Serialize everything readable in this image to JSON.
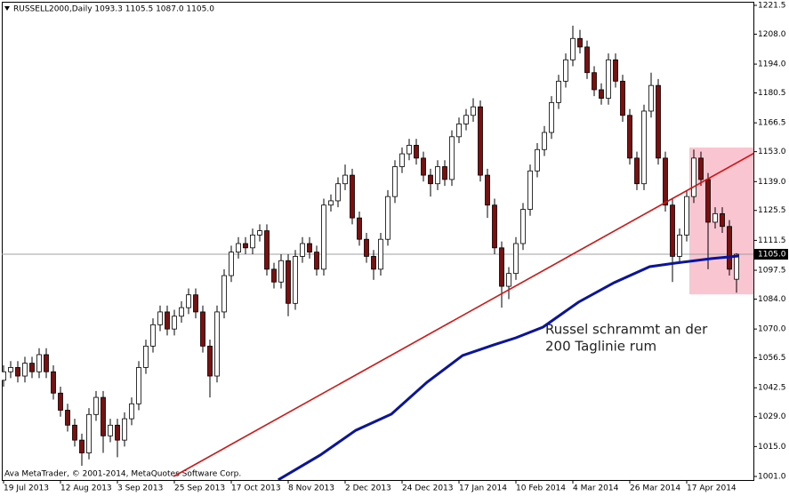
{
  "chart_data": {
    "type": "candlestick",
    "title": "RUSSELL2000,Daily  1093.3 1105.5 1087.0 1105.0",
    "copyright": "Ava MetaTrader, © 2001-2014, MetaQuotes Software Corp.",
    "annotation": [
      "Russel schrammt an der",
      "200 Taglinie rum"
    ],
    "categories": [
      "19 Jul 2013",
      null,
      null,
      null,
      null,
      null,
      null,
      null,
      "12 Aug 2013",
      null,
      null,
      null,
      null,
      null,
      null,
      null,
      "3 Sep 2013",
      null,
      null,
      null,
      null,
      null,
      null,
      null,
      "25 Sep 2013",
      null,
      null,
      null,
      null,
      null,
      null,
      null,
      "17 Oct 2013",
      null,
      null,
      null,
      null,
      null,
      null,
      null,
      "8 Nov 2013",
      null,
      null,
      null,
      null,
      null,
      null,
      null,
      "2 Dec 2013",
      null,
      null,
      null,
      null,
      null,
      null,
      null,
      "24 Dec 2013",
      null,
      null,
      null,
      null,
      null,
      null,
      null,
      "17 Jan 2014",
      null,
      null,
      null,
      null,
      null,
      null,
      null,
      "10 Feb 2014",
      null,
      null,
      null,
      null,
      null,
      null,
      null,
      "4 Mar 2014",
      null,
      null,
      null,
      null,
      null,
      null,
      null,
      "26 Mar 2014",
      null,
      null,
      null,
      null,
      null,
      null,
      null,
      "17 Apr 2014",
      null,
      null,
      null,
      null,
      null,
      null,
      null
    ],
    "open": [
      1046,
      1050,
      1052,
      1048,
      1054,
      1050,
      1058,
      1050,
      1040,
      1032,
      1025,
      1018,
      1012,
      1030,
      1038,
      1020,
      1025,
      1018,
      1028,
      1035,
      1052,
      1062,
      1072,
      1078,
      1070,
      1076,
      1080,
      1086,
      1078,
      1062,
      1048,
      1078,
      1095,
      1106,
      1110,
      1108,
      1114,
      1116,
      1098,
      1092,
      1102,
      1082,
      1104,
      1110,
      1106,
      1098,
      1128,
      1130,
      1138,
      1142,
      1122,
      1112,
      1104,
      1098,
      1112,
      1132,
      1146,
      1152,
      1156,
      1150,
      1142,
      1138,
      1146,
      1140,
      1160,
      1166,
      1170,
      1174,
      1142,
      1128,
      1108,
      1090,
      1096,
      1110,
      1126,
      1144,
      1154,
      1162,
      1176,
      1186,
      1196,
      1206,
      1202,
      1190,
      1182,
      1178,
      1196,
      1186,
      1170,
      1150,
      1138,
      1172,
      1184,
      1150,
      1128,
      1104,
      1114,
      1132,
      1150,
      1140,
      1120,
      1124,
      1118,
      1093.3
    ],
    "high": [
      1053,
      1055,
      1055,
      1057,
      1057,
      1061,
      1061,
      1053,
      1043,
      1035,
      1028,
      1021,
      1033,
      1041,
      1041,
      1028,
      1028,
      1031,
      1038,
      1055,
      1065,
      1075,
      1081,
      1081,
      1079,
      1083,
      1089,
      1089,
      1081,
      1065,
      1081,
      1098,
      1109,
      1113,
      1113,
      1117,
      1119,
      1119,
      1101,
      1105,
      1105,
      1107,
      1113,
      1113,
      1109,
      1131,
      1133,
      1141,
      1147,
      1145,
      1125,
      1115,
      1107,
      1115,
      1135,
      1149,
      1155,
      1159,
      1159,
      1153,
      1145,
      1149,
      1149,
      1163,
      1169,
      1173,
      1178,
      1177,
      1145,
      1131,
      1111,
      1099,
      1113,
      1129,
      1147,
      1157,
      1165,
      1179,
      1189,
      1199,
      1212,
      1210,
      1205,
      1193,
      1185,
      1199,
      1199,
      1189,
      1173,
      1153,
      1175,
      1190,
      1187,
      1153,
      1131,
      1117,
      1135,
      1154,
      1153,
      1143,
      1127,
      1127,
      1121,
      1105.5
    ],
    "low": [
      1043,
      1047,
      1045,
      1045,
      1047,
      1047,
      1047,
      1037,
      1029,
      1022,
      1015,
      1006,
      1009,
      1027,
      1012,
      1017,
      1010,
      1015,
      1025,
      1032,
      1049,
      1059,
      1069,
      1067,
      1067,
      1073,
      1077,
      1075,
      1059,
      1038,
      1045,
      1075,
      1092,
      1103,
      1105,
      1105,
      1111,
      1095,
      1089,
      1089,
      1076,
      1079,
      1101,
      1103,
      1095,
      1095,
      1125,
      1127,
      1135,
      1119,
      1109,
      1101,
      1093,
      1095,
      1109,
      1129,
      1143,
      1149,
      1147,
      1139,
      1132,
      1135,
      1137,
      1137,
      1157,
      1163,
      1167,
      1139,
      1122,
      1105,
      1080,
      1084,
      1093,
      1107,
      1123,
      1141,
      1151,
      1159,
      1173,
      1183,
      1193,
      1199,
      1187,
      1179,
      1175,
      1175,
      1183,
      1167,
      1147,
      1135,
      1135,
      1169,
      1147,
      1125,
      1092,
      1101,
      1111,
      1129,
      1137,
      1098,
      1117,
      1115,
      1095,
      1087.0
    ],
    "close": [
      1050,
      1052,
      1048,
      1054,
      1050,
      1058,
      1050,
      1040,
      1032,
      1025,
      1018,
      1012,
      1030,
      1038,
      1020,
      1025,
      1018,
      1028,
      1035,
      1052,
      1062,
      1072,
      1078,
      1070,
      1076,
      1080,
      1086,
      1078,
      1062,
      1048,
      1078,
      1095,
      1106,
      1110,
      1108,
      1114,
      1116,
      1098,
      1092,
      1102,
      1082,
      1104,
      1110,
      1106,
      1098,
      1128,
      1130,
      1138,
      1142,
      1122,
      1112,
      1104,
      1098,
      1112,
      1132,
      1146,
      1152,
      1156,
      1150,
      1142,
      1138,
      1146,
      1140,
      1160,
      1166,
      1170,
      1174,
      1142,
      1128,
      1108,
      1090,
      1096,
      1110,
      1126,
      1144,
      1154,
      1162,
      1176,
      1186,
      1196,
      1206,
      1202,
      1190,
      1182,
      1178,
      1196,
      1186,
      1170,
      1150,
      1138,
      1172,
      1184,
      1150,
      1128,
      1104,
      1114,
      1132,
      1150,
      1140,
      1120,
      1124,
      1118,
      1098,
      1105.0
    ],
    "bull_color": "#ffffff",
    "bear_color": "#7a1010",
    "overlays": [
      {
        "color": "#e01010",
        "x": [
          23.9,
          105.5
        ],
        "values": [
          1001.0,
          1152.4
        ]
      },
      {
        "color": "#0a14a0",
        "x": [
          38.6,
          44.5,
          49.5,
          54.5,
          59.5,
          64.5,
          68.9,
          72,
          75.8,
          80.8,
          85.8,
          90.8,
          94.5,
          99.5,
          103.3
        ],
        "values": [
          999.4,
          1011.0,
          1022.6,
          1030.2,
          1045.1,
          1057.6,
          1062.6,
          1065.9,
          1070.9,
          1082.6,
          1091.7,
          1099.2,
          1100.9,
          1103.0,
          1104.2
        ]
      }
    ],
    "price_line": {
      "value": 1105.0,
      "label": "1105.0"
    },
    "ylim": [
      1001.0,
      1221.5
    ],
    "yticks": [
      1221.5,
      {
        "value": 1208.0,
        "label": "1208.0"
      },
      {
        "value": 1194.0,
        "label": "1194.0"
      },
      1180.5,
      1166.5,
      {
        "value": 1153.0,
        "label": "1153.0"
      },
      {
        "value": 1139.0,
        "label": "1139.0"
      },
      1125.5,
      1111.5,
      1097.5,
      {
        "value": 1084.0,
        "label": "1084.0"
      },
      {
        "value": 1070.0,
        "label": "1070.0"
      },
      1056.5,
      1042.5,
      {
        "value": 1029.0,
        "label": "1029.0"
      },
      {
        "value": 1015.0,
        "label": "1015.0"
      },
      {
        "value": 1001.0,
        "label": "1001.0"
      }
    ]
  }
}
